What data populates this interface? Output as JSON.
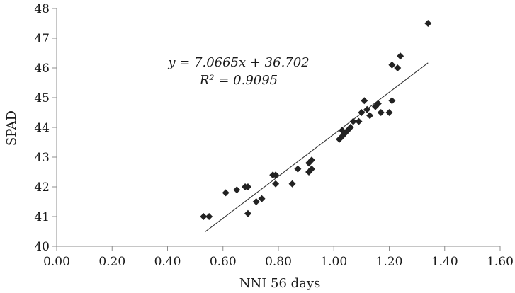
{
  "chart_data": {
    "type": "scatter",
    "xlabel": "NNI 56 days",
    "ylabel": "SPAD",
    "xlim": [
      0.0,
      1.6
    ],
    "ylim": [
      40,
      48
    ],
    "x_ticks": [
      0.0,
      0.2,
      0.4,
      0.6,
      0.8,
      1.0,
      1.2,
      1.4,
      1.6
    ],
    "x_tick_labels": [
      "0.00",
      "0.20",
      "0.40",
      "0.60",
      "0.80",
      "1.00",
      "1.20",
      "1.40",
      "1.60"
    ],
    "y_ticks": [
      40,
      41,
      42,
      43,
      44,
      45,
      46,
      47,
      48
    ],
    "y_tick_labels": [
      "40",
      "41",
      "42",
      "43",
      "44",
      "45",
      "46",
      "47",
      "48"
    ],
    "grid": false,
    "marker": "diamond",
    "marker_color": "#222222",
    "points": [
      {
        "x": 0.53,
        "y": 41.0
      },
      {
        "x": 0.55,
        "y": 41.0
      },
      {
        "x": 0.61,
        "y": 41.8
      },
      {
        "x": 0.65,
        "y": 41.9
      },
      {
        "x": 0.68,
        "y": 42.0
      },
      {
        "x": 0.69,
        "y": 42.0
      },
      {
        "x": 0.69,
        "y": 41.1
      },
      {
        "x": 0.72,
        "y": 41.5
      },
      {
        "x": 0.74,
        "y": 41.6
      },
      {
        "x": 0.78,
        "y": 42.4
      },
      {
        "x": 0.79,
        "y": 42.1
      },
      {
        "x": 0.79,
        "y": 42.4
      },
      {
        "x": 0.85,
        "y": 42.1
      },
      {
        "x": 0.87,
        "y": 42.6
      },
      {
        "x": 0.91,
        "y": 42.8
      },
      {
        "x": 0.91,
        "y": 42.5
      },
      {
        "x": 0.92,
        "y": 42.6
      },
      {
        "x": 0.92,
        "y": 42.9
      },
      {
        "x": 1.02,
        "y": 43.6
      },
      {
        "x": 1.03,
        "y": 43.7
      },
      {
        "x": 1.03,
        "y": 43.9
      },
      {
        "x": 1.04,
        "y": 43.8
      },
      {
        "x": 1.05,
        "y": 43.9
      },
      {
        "x": 1.06,
        "y": 44.0
      },
      {
        "x": 1.07,
        "y": 44.2
      },
      {
        "x": 1.09,
        "y": 44.2
      },
      {
        "x": 1.1,
        "y": 44.5
      },
      {
        "x": 1.11,
        "y": 44.9
      },
      {
        "x": 1.12,
        "y": 44.6
      },
      {
        "x": 1.13,
        "y": 44.4
      },
      {
        "x": 1.15,
        "y": 44.7
      },
      {
        "x": 1.16,
        "y": 44.8
      },
      {
        "x": 1.17,
        "y": 44.5
      },
      {
        "x": 1.2,
        "y": 44.5
      },
      {
        "x": 1.21,
        "y": 46.1
      },
      {
        "x": 1.21,
        "y": 44.9
      },
      {
        "x": 1.23,
        "y": 46.0
      },
      {
        "x": 1.24,
        "y": 46.4
      },
      {
        "x": 1.34,
        "y": 47.5
      }
    ],
    "trendline": {
      "slope": 7.0665,
      "intercept": 36.702,
      "x_range": [
        0.535,
        1.34
      ],
      "equation_label": "y = 7.0665x + 36.702",
      "r2_label": "R² = 0.9095"
    }
  }
}
